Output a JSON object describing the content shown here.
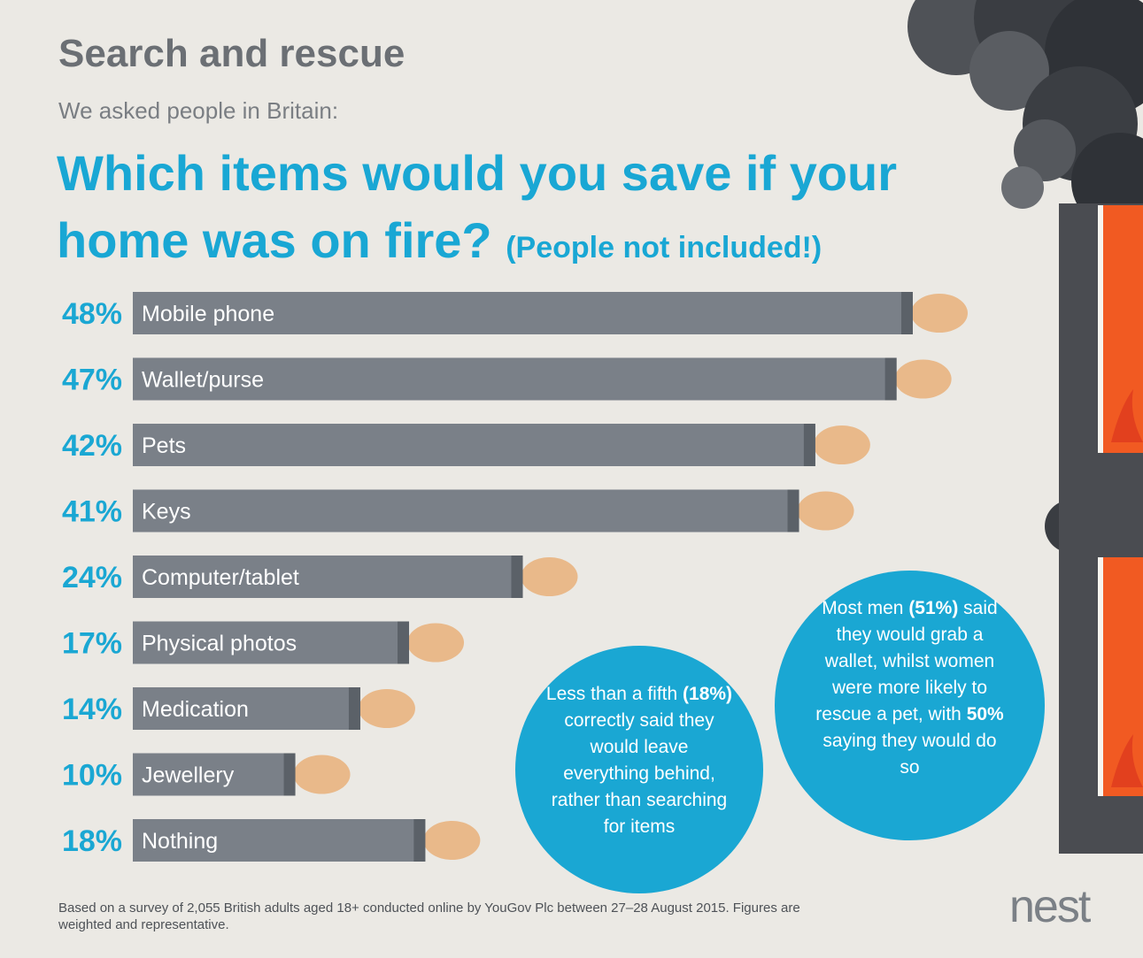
{
  "title": "Search and rescue",
  "subtitle": "We asked people in Britain:",
  "question": "Which items would you save if your home was on fire?",
  "question_aside": "(People not included!)",
  "chart_data": {
    "type": "bar",
    "orientation": "horizontal",
    "categories": [
      "Mobile phone",
      "Wallet/purse",
      "Pets",
      "Keys",
      "Computer/tablet",
      "Physical photos",
      "Medication",
      "Jewellery",
      "Nothing"
    ],
    "values": [
      48,
      47,
      42,
      41,
      24,
      17,
      14,
      10,
      18
    ],
    "value_labels": [
      "48%",
      "47%",
      "42%",
      "41%",
      "24%",
      "17%",
      "14%",
      "10%",
      "18%"
    ],
    "xlim": [
      0,
      50
    ],
    "colors": {
      "bar": "#7a8088",
      "cuff": "#5b6168",
      "value": "#1aa7d3",
      "label": "#ffffff"
    }
  },
  "callouts": [
    {
      "before": "Less than a fifth ",
      "bold": "(18%)",
      "after": " correctly said they would leave everything behind, rather than searching for items"
    },
    {
      "before": "Most men ",
      "bold": "(51%)",
      "after": " said they would grab a wallet, whilst women were more likely to rescue a pet, with ",
      "bold2": "50%",
      "after2": " saying they would do so"
    }
  ],
  "footnote": "Based on a survey of 2,055 British adults aged 18+ conducted online by YouGov Plc between 27–28 August 2015. Figures are weighted and representative.",
  "logo": "nest",
  "colors": {
    "accent": "#19a7d4",
    "bubble": "#1aa7d3",
    "background": "#ebe9e4",
    "fire": "#f15a22",
    "smoke": "#3d4045",
    "building": "#4a4c51"
  }
}
